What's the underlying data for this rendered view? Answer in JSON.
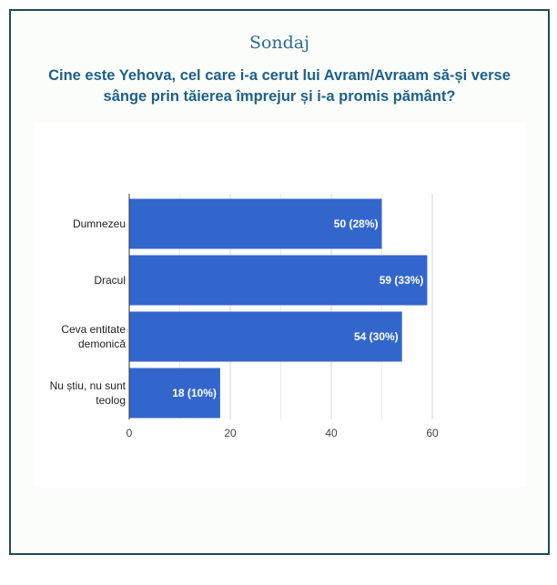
{
  "title": "Sondaj",
  "question": "Cine este Yehova, cel care i-a cerut lui Avram/Avraam să-și verse sânge prin tăierea împrejur și i-a promis pământ?",
  "chart_data": {
    "type": "bar",
    "orientation": "horizontal",
    "categories": [
      [
        "Dumnezeu"
      ],
      [
        "Dracul"
      ],
      [
        "Ceva entitate",
        "demonică"
      ],
      [
        "Nu știu, nu sunt",
        "teolog"
      ]
    ],
    "values": [
      50,
      59,
      54,
      18
    ],
    "data_labels": [
      "50 (28%)",
      "59 (33%)",
      "54 (30%)",
      "18 (10%)"
    ],
    "xticks": [
      "0",
      "20",
      "40",
      "60"
    ],
    "xlim": [
      0,
      60
    ],
    "grid": true,
    "bar_color": "#3366cc"
  }
}
